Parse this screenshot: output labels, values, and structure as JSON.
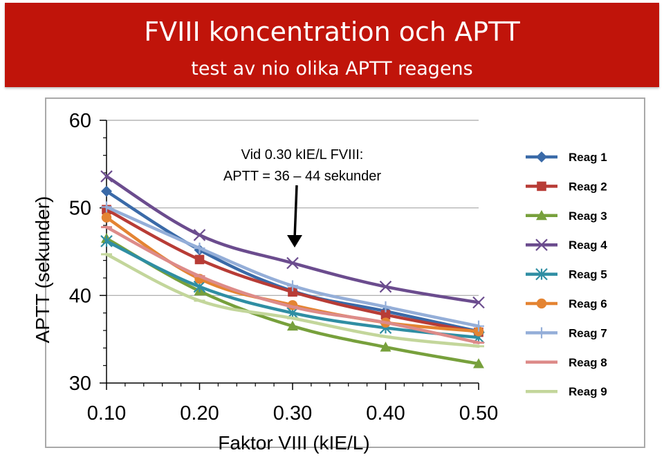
{
  "header": {
    "title": "FVIII koncentration och APTT",
    "subtitle": "test av nio olika APTT reagens",
    "background": "#c0140a"
  },
  "chart_data": {
    "type": "line",
    "xlabel": "Faktor VIII (kIE/L)",
    "ylabel": "APTT (sekunder)",
    "x": [
      0.1,
      0.2,
      0.3,
      0.4,
      0.5
    ],
    "x_tick_labels": [
      "0.10",
      "0.20",
      "0.30",
      "0.40",
      "0.50"
    ],
    "ylim": [
      30,
      60
    ],
    "y_ticks": [
      30,
      40,
      50,
      60
    ],
    "grid": "horizontal",
    "legend_position": "right",
    "annotation": {
      "line1": "Vid 0.30 kIE/L FVIII:",
      "line2": "APTT = 36 – 44 sekunder"
    },
    "series": [
      {
        "name": "Reag 1",
        "values": [
          51.9,
          45.2,
          40.5,
          38.2,
          35.9
        ],
        "color": "#3a6aa8",
        "marker": "diamond"
      },
      {
        "name": "Reag 2",
        "values": [
          49.8,
          44.1,
          40.4,
          37.8,
          35.8
        ],
        "color": "#b83c36",
        "marker": "square"
      },
      {
        "name": "Reag 3",
        "values": [
          46.5,
          40.5,
          36.5,
          34.1,
          32.2
        ],
        "color": "#77a03c",
        "marker": "triangle"
      },
      {
        "name": "Reag 4",
        "values": [
          53.6,
          46.9,
          43.7,
          41.0,
          39.2
        ],
        "color": "#6b4c8e",
        "marker": "x"
      },
      {
        "name": "Reag 5",
        "values": [
          46.2,
          41.0,
          38.0,
          36.3,
          35.2
        ],
        "color": "#2f8ea3",
        "marker": "asterisk"
      },
      {
        "name": "Reag 6",
        "values": [
          48.9,
          41.9,
          38.9,
          36.9,
          35.9
        ],
        "color": "#e48432",
        "marker": "circle"
      },
      {
        "name": "Reag 7",
        "values": [
          50.1,
          45.4,
          41.1,
          38.7,
          36.5
        ],
        "color": "#94aed8",
        "marker": "plus"
      },
      {
        "name": "Reag 8",
        "values": [
          47.8,
          42.2,
          38.7,
          36.9,
          34.6
        ],
        "color": "#dd8b89",
        "marker": "dash"
      },
      {
        "name": "Reag 9",
        "values": [
          44.7,
          39.4,
          37.4,
          35.3,
          34.2
        ],
        "color": "#c3d69b",
        "marker": "dash"
      }
    ]
  }
}
